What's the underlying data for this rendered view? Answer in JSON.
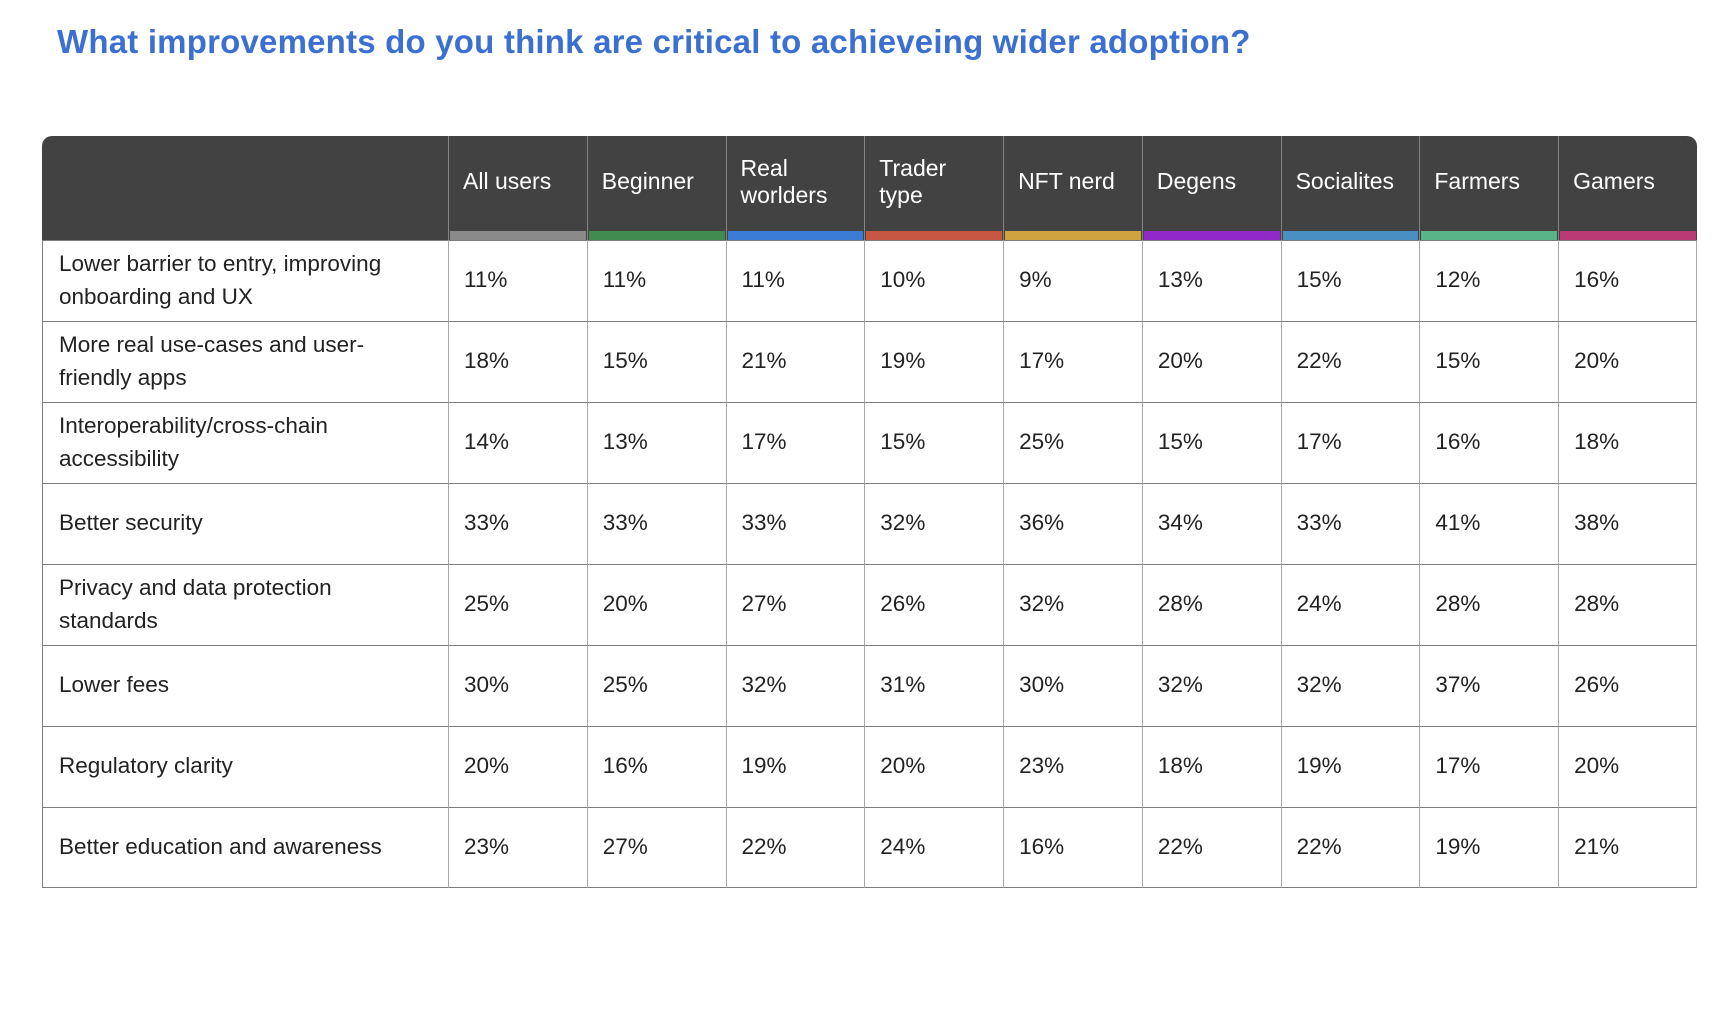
{
  "title": "What improvements do you think are critical to achieveing wider adoption?",
  "table": {
    "columns": [
      {
        "label": "All users",
        "color": "#8a8a8a"
      },
      {
        "label": "Beginner",
        "color": "#3f8b50"
      },
      {
        "label": "Real worlders",
        "color": "#3a7bd5"
      },
      {
        "label": "Trader type",
        "color": "#c65843"
      },
      {
        "label": "NFT nerd",
        "color": "#cfa43d"
      },
      {
        "label": "Degens",
        "color": "#9128c8"
      },
      {
        "label": "Socialites",
        "color": "#4a8fc2"
      },
      {
        "label": "Farmers",
        "color": "#58b586"
      },
      {
        "label": "Gamers",
        "color": "#ba3a75"
      }
    ],
    "rows": [
      {
        "label": "Lower barrier to entry, improving onboarding and UX",
        "values": [
          "11%",
          "11%",
          "11%",
          "10%",
          "9%",
          "13%",
          "15%",
          "12%",
          "16%"
        ]
      },
      {
        "label": "More real use-cases and user-friendly apps",
        "values": [
          "18%",
          "15%",
          "21%",
          "19%",
          "17%",
          "20%",
          "22%",
          "15%",
          "20%"
        ]
      },
      {
        "label": "Interoperability/cross-chain accessibility",
        "values": [
          "14%",
          "13%",
          "17%",
          "15%",
          "25%",
          "15%",
          "17%",
          "16%",
          "18%"
        ]
      },
      {
        "label": "Better security",
        "values": [
          "33%",
          "33%",
          "33%",
          "32%",
          "36%",
          "34%",
          "33%",
          "41%",
          "38%"
        ]
      },
      {
        "label": "Privacy and data protection standards",
        "values": [
          "25%",
          "20%",
          "27%",
          "26%",
          "32%",
          "28%",
          "24%",
          "28%",
          "28%"
        ]
      },
      {
        "label": "Lower fees",
        "values": [
          "30%",
          "25%",
          "32%",
          "31%",
          "30%",
          "32%",
          "32%",
          "37%",
          "26%"
        ]
      },
      {
        "label": "Regulatory clarity",
        "values": [
          "20%",
          "16%",
          "19%",
          "20%",
          "23%",
          "18%",
          "19%",
          "17%",
          "20%"
        ]
      },
      {
        "label": "Better education and awareness",
        "values": [
          "23%",
          "27%",
          "22%",
          "24%",
          "16%",
          "22%",
          "22%",
          "19%",
          "21%"
        ]
      }
    ]
  },
  "chart_data": {
    "type": "table",
    "title": "What improvements do you think are critical to achieveing wider adoption?",
    "columns": [
      "All users",
      "Beginner",
      "Real worlders",
      "Trader type",
      "NFT nerd",
      "Degens",
      "Socialites",
      "Farmers",
      "Gamers"
    ],
    "column_colors": [
      "#8a8a8a",
      "#3f8b50",
      "#3a7bd5",
      "#c65843",
      "#cfa43d",
      "#9128c8",
      "#4a8fc2",
      "#58b586",
      "#ba3a75"
    ],
    "rows": [
      "Lower barrier to entry, improving onboarding and UX",
      "More real use-cases and user-friendly apps",
      "Interoperability/cross-chain accessibility",
      "Better security",
      "Privacy and data protection standards",
      "Lower fees",
      "Regulatory clarity",
      "Better education and awareness"
    ],
    "values_percent": [
      [
        11,
        11,
        11,
        10,
        9,
        13,
        15,
        12,
        16
      ],
      [
        18,
        15,
        21,
        19,
        17,
        20,
        22,
        15,
        20
      ],
      [
        14,
        13,
        17,
        15,
        25,
        15,
        17,
        16,
        18
      ],
      [
        33,
        33,
        33,
        32,
        36,
        34,
        33,
        41,
        38
      ],
      [
        25,
        20,
        27,
        26,
        32,
        28,
        24,
        28,
        28
      ],
      [
        30,
        25,
        32,
        31,
        30,
        32,
        32,
        37,
        26
      ],
      [
        20,
        16,
        19,
        20,
        23,
        18,
        19,
        17,
        20
      ],
      [
        23,
        27,
        22,
        24,
        16,
        22,
        22,
        19,
        21
      ]
    ]
  }
}
